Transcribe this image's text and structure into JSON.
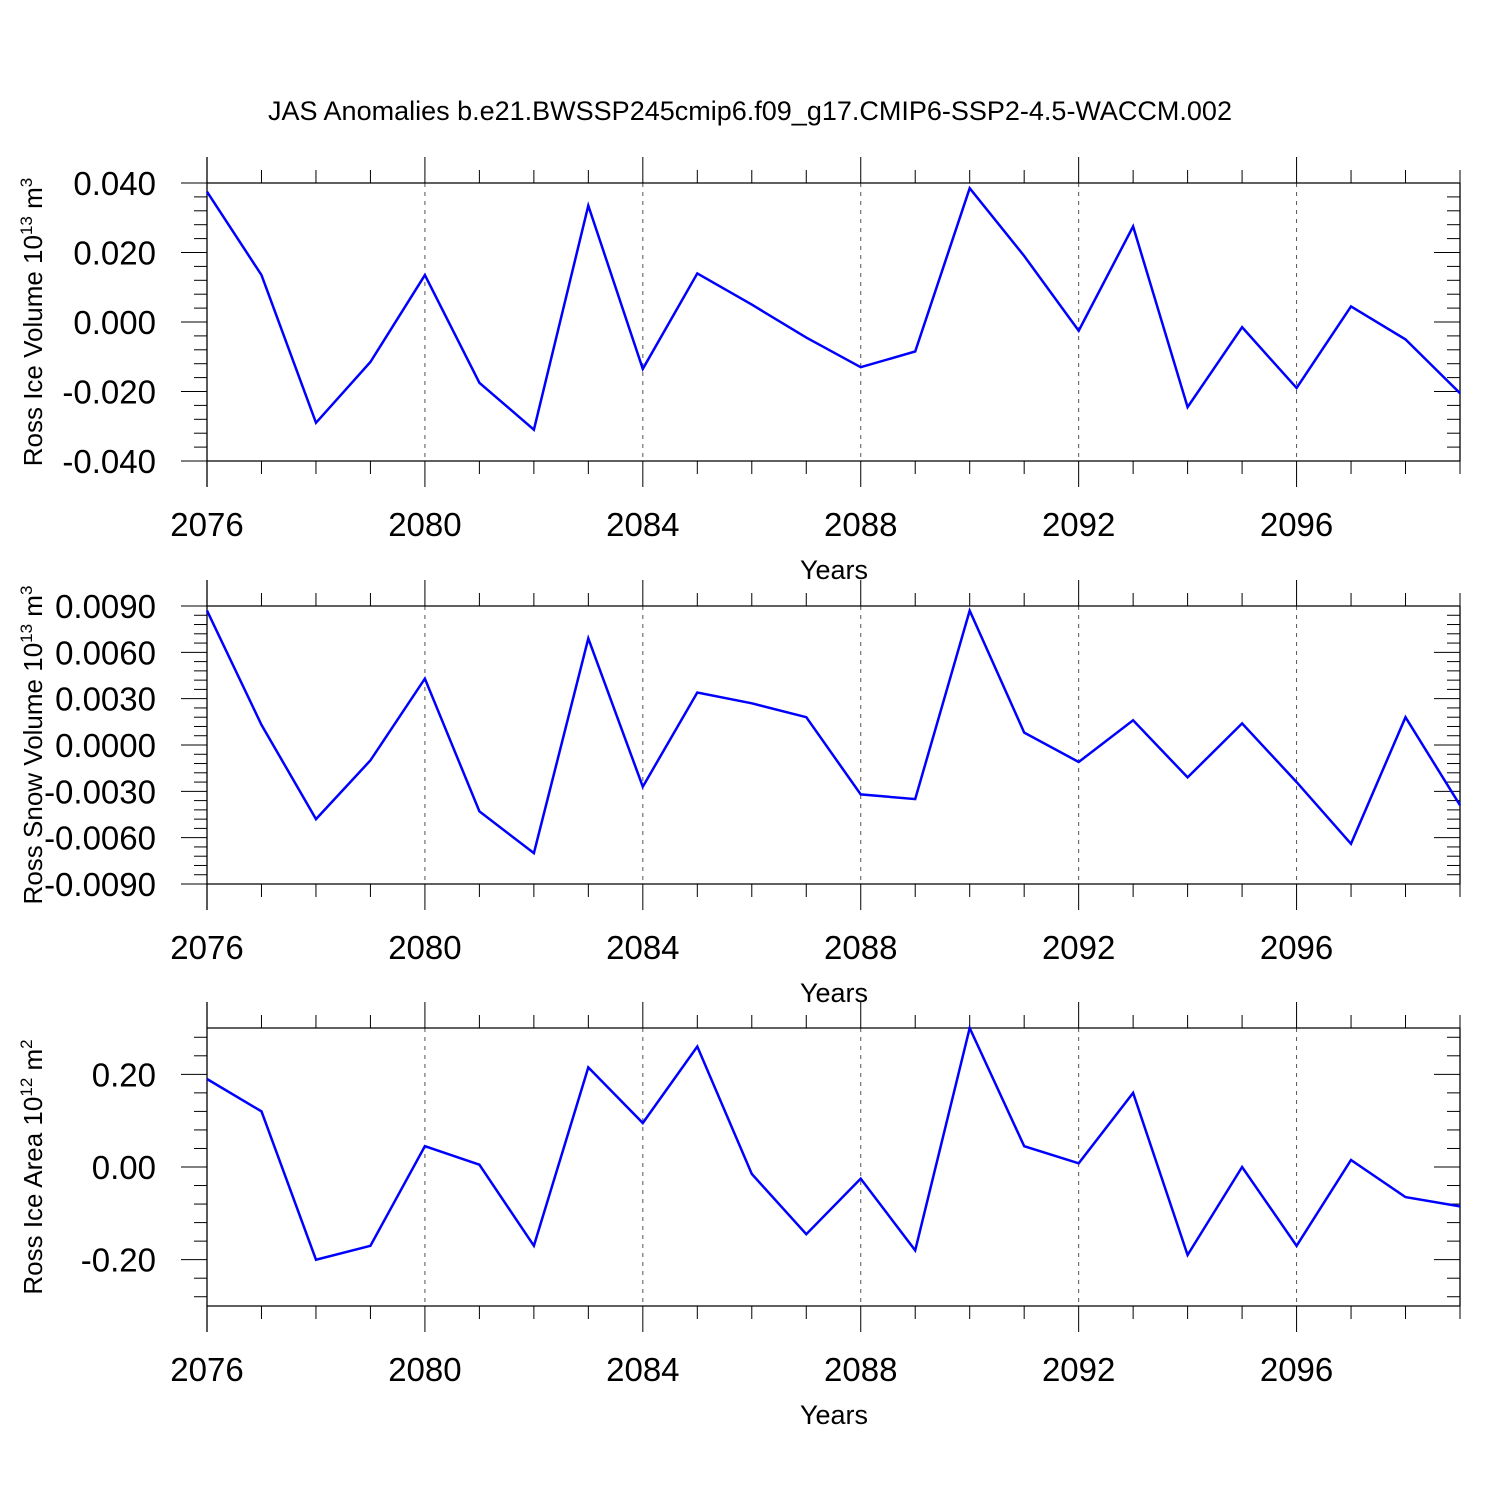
{
  "title": "JAS Anomalies b.e21.BWSSP245cmip6.f09_g17.CMIP6-SSP2-4.5-WACCM.002",
  "colors": {
    "line": "#0000ff",
    "axis": "#000000",
    "grid": "#555555"
  },
  "chart_data": [
    {
      "type": "line",
      "xlabel": "Years",
      "ylabel": {
        "main": "Ross Ice Volume 10",
        "sup": "13",
        "unit": " m",
        "unit_sup": "3"
      },
      "xlim": [
        2076,
        2099
      ],
      "ylim": [
        -0.04,
        0.04
      ],
      "grid": "vertical dashed at major x ticks",
      "x_ticks": [
        2076,
        2080,
        2084,
        2088,
        2092,
        2096
      ],
      "x_tick_labels": [
        "2076",
        "2080",
        "2084",
        "2088",
        "2092",
        "2096"
      ],
      "y_ticks": [
        -0.04,
        -0.02,
        0.0,
        0.02,
        0.04
      ],
      "y_tick_labels": [
        "-0.040",
        "-0.020",
        "0.000",
        "0.020",
        "0.040"
      ],
      "x": [
        2076,
        2077,
        2078,
        2079,
        2080,
        2081,
        2082,
        2083,
        2084,
        2085,
        2086,
        2087,
        2088,
        2089,
        2090,
        2091,
        2092,
        2093,
        2094,
        2095,
        2096,
        2097,
        2098,
        2099
      ],
      "values": [
        0.0375,
        0.0135,
        -0.029,
        -0.0115,
        0.0135,
        -0.0175,
        -0.031,
        0.0335,
        -0.0135,
        0.014,
        0.005,
        -0.0045,
        -0.013,
        -0.0085,
        0.0385,
        0.019,
        -0.0025,
        0.0275,
        -0.0245,
        -0.0015,
        -0.019,
        0.0045,
        -0.005,
        -0.0205
      ]
    },
    {
      "type": "line",
      "xlabel": "Years",
      "ylabel": {
        "main": "Ross Snow Volume 10",
        "sup": "13",
        "unit": " m",
        "unit_sup": "3"
      },
      "xlim": [
        2076,
        2099
      ],
      "ylim": [
        -0.009,
        0.009
      ],
      "grid": "vertical dashed at major x ticks",
      "x_ticks": [
        2076,
        2080,
        2084,
        2088,
        2092,
        2096
      ],
      "x_tick_labels": [
        "2076",
        "2080",
        "2084",
        "2088",
        "2092",
        "2096"
      ],
      "y_ticks": [
        -0.009,
        -0.006,
        -0.003,
        0.0,
        0.003,
        0.006,
        0.009
      ],
      "y_tick_labels": [
        "-0.0090",
        "-0.0060",
        "-0.0030",
        "0.0000",
        "0.0030",
        "0.0060",
        "0.0090"
      ],
      "x": [
        2076,
        2077,
        2078,
        2079,
        2080,
        2081,
        2082,
        2083,
        2084,
        2085,
        2086,
        2087,
        2088,
        2089,
        2090,
        2091,
        2092,
        2093,
        2094,
        2095,
        2096,
        2097,
        2098,
        2099
      ],
      "values": [
        0.0087,
        0.0013,
        -0.0048,
        -0.001,
        0.0043,
        -0.0043,
        -0.007,
        0.0069,
        -0.0027,
        0.0034,
        0.0027,
        0.0018,
        -0.0032,
        -0.0035,
        0.0087,
        0.0008,
        -0.0011,
        0.0016,
        -0.0021,
        0.0014,
        -0.0024,
        -0.0064,
        0.0018,
        -0.0039
      ]
    },
    {
      "type": "line",
      "xlabel": "Years",
      "ylabel": {
        "main": "Ross Ice Area 10",
        "sup": "12",
        "unit": " m",
        "unit_sup": "2"
      },
      "xlim": [
        2076,
        2099
      ],
      "ylim": [
        -0.3,
        0.3
      ],
      "grid": "vertical dashed at major x ticks",
      "x_ticks": [
        2076,
        2080,
        2084,
        2088,
        2092,
        2096
      ],
      "x_tick_labels": [
        "2076",
        "2080",
        "2084",
        "2088",
        "2092",
        "2096"
      ],
      "y_ticks": [
        -0.2,
        0.0,
        0.2
      ],
      "y_tick_labels": [
        "-0.20",
        "0.00",
        "0.20"
      ],
      "x": [
        2076,
        2077,
        2078,
        2079,
        2080,
        2081,
        2082,
        2083,
        2084,
        2085,
        2086,
        2087,
        2088,
        2089,
        2090,
        2091,
        2092,
        2093,
        2094,
        2095,
        2096,
        2097,
        2098,
        2099
      ],
      "values": [
        0.19,
        0.12,
        -0.2,
        -0.17,
        0.045,
        0.005,
        -0.17,
        0.215,
        0.095,
        0.26,
        -0.015,
        -0.145,
        -0.025,
        -0.18,
        0.3,
        0.045,
        0.008,
        0.16,
        -0.19,
        0.0,
        -0.17,
        0.015,
        -0.065,
        -0.085
      ]
    }
  ]
}
